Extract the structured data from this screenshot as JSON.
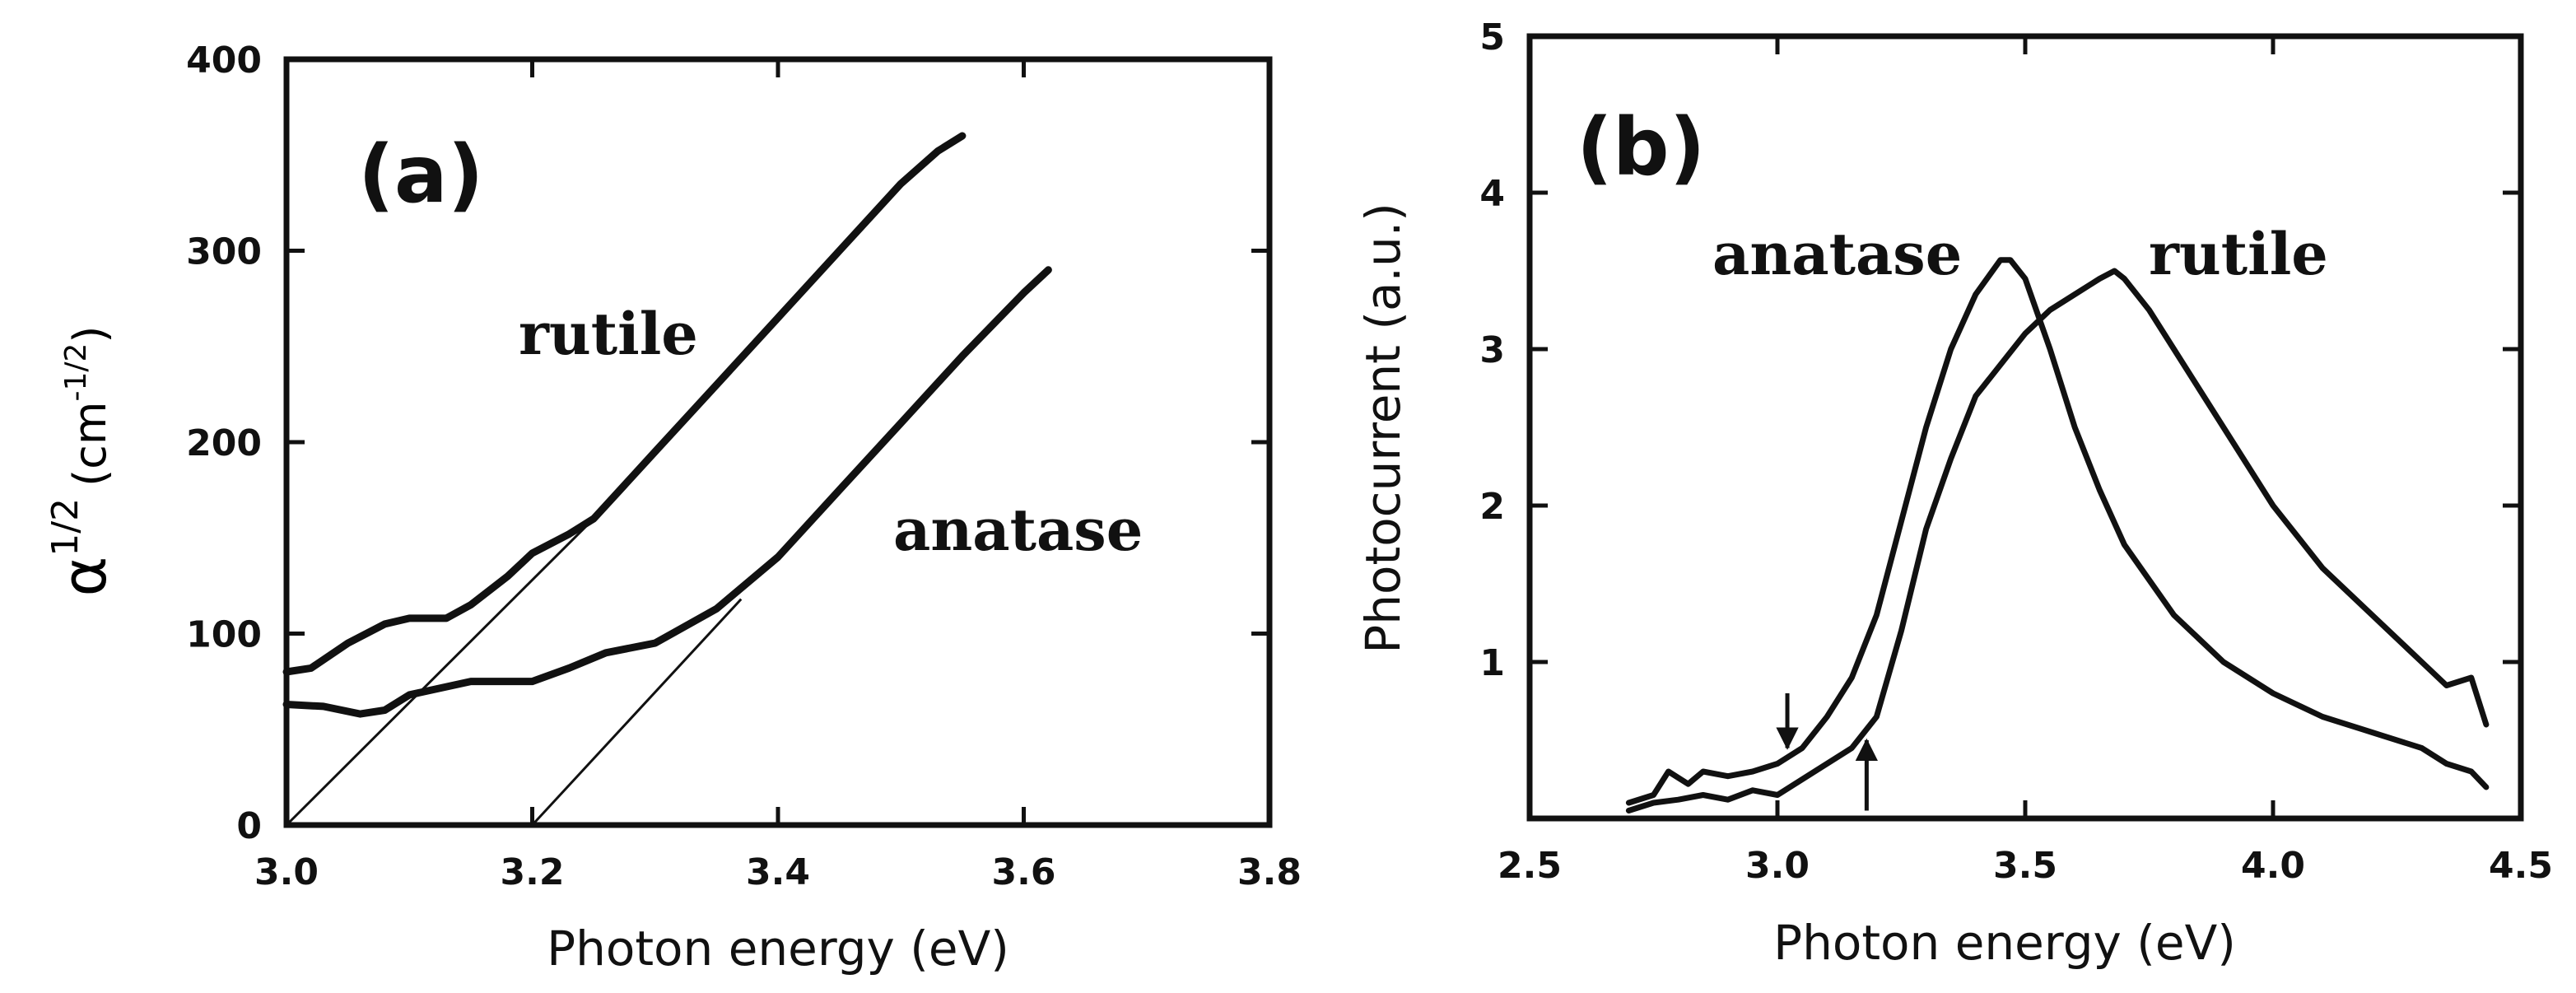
{
  "chart_data": [
    {
      "type": "line",
      "panel": "(a)",
      "xlabel": "Photon energy (eV)",
      "ylabel_main": "α",
      "ylabel_sup": "1/2",
      "ylabel_unit": "(cm",
      "ylabel_unit_sup": "-1/2",
      "ylabel_unit_end": ")",
      "xlim": [
        3.0,
        3.8
      ],
      "ylim": [
        0,
        400
      ],
      "xticks": [
        "3.0",
        "3.2",
        "3.4",
        "3.6",
        "3.8"
      ],
      "xtick_values": [
        3.0,
        3.2,
        3.4,
        3.6,
        3.8
      ],
      "yticks": [
        "0",
        "100",
        "200",
        "300",
        "400"
      ],
      "ytick_values": [
        0,
        100,
        200,
        300,
        400
      ],
      "series": [
        {
          "name": "rutile",
          "x": [
            3.0,
            3.02,
            3.05,
            3.08,
            3.1,
            3.13,
            3.15,
            3.18,
            3.2,
            3.23,
            3.25,
            3.3,
            3.35,
            3.4,
            3.45,
            3.5,
            3.53,
            3.55
          ],
          "y": [
            80,
            82,
            95,
            105,
            108,
            108,
            115,
            130,
            142,
            152,
            160,
            195,
            230,
            265,
            300,
            335,
            352,
            360
          ]
        },
        {
          "name": "anatase",
          "x": [
            3.0,
            3.03,
            3.06,
            3.08,
            3.1,
            3.15,
            3.2,
            3.23,
            3.26,
            3.3,
            3.35,
            3.4,
            3.45,
            3.5,
            3.55,
            3.6,
            3.62
          ],
          "y": [
            63,
            62,
            58,
            60,
            68,
            75,
            75,
            82,
            90,
            95,
            113,
            140,
            175,
            210,
            245,
            278,
            290
          ]
        }
      ],
      "fit_lines": [
        {
          "name": "rutile-fit",
          "x": [
            3.0,
            3.25
          ],
          "y": [
            0,
            160
          ]
        },
        {
          "name": "anatase-fit",
          "x": [
            3.2,
            3.37
          ],
          "y": [
            0,
            118
          ]
        }
      ],
      "annotations": [
        "rutile",
        "anatase"
      ]
    },
    {
      "type": "line",
      "panel": "(b)",
      "xlabel": "Photon energy (eV)",
      "ylabel": "Photocurrent (a.u.)",
      "xlim": [
        2.5,
        4.5
      ],
      "ylim": [
        0,
        5
      ],
      "xticks": [
        "2.5",
        "3.0",
        "3.5",
        "4.0",
        "4.5"
      ],
      "xtick_values": [
        2.5,
        3.0,
        3.5,
        4.0,
        4.5
      ],
      "yticks": [
        "1",
        "2",
        "3",
        "4",
        "5"
      ],
      "ytick_values": [
        1,
        2,
        3,
        4,
        5
      ],
      "series": [
        {
          "name": "anatase",
          "x": [
            2.7,
            2.75,
            2.78,
            2.82,
            2.85,
            2.9,
            2.95,
            3.0,
            3.05,
            3.1,
            3.15,
            3.2,
            3.25,
            3.3,
            3.35,
            3.4,
            3.45,
            3.47,
            3.5,
            3.55,
            3.6,
            3.65,
            3.7,
            3.8,
            3.9,
            4.0,
            4.1,
            4.2,
            4.3,
            4.35,
            4.4,
            4.43
          ],
          "y": [
            0.1,
            0.15,
            0.3,
            0.22,
            0.3,
            0.27,
            0.3,
            0.35,
            0.45,
            0.65,
            0.9,
            1.3,
            1.9,
            2.5,
            3.0,
            3.35,
            3.57,
            3.57,
            3.45,
            3.0,
            2.5,
            2.1,
            1.75,
            1.3,
            1.0,
            0.8,
            0.65,
            0.55,
            0.45,
            0.35,
            0.3,
            0.2
          ]
        },
        {
          "name": "rutile",
          "x": [
            2.7,
            2.75,
            2.8,
            2.85,
            2.9,
            2.95,
            3.0,
            3.05,
            3.1,
            3.15,
            3.2,
            3.25,
            3.3,
            3.35,
            3.4,
            3.45,
            3.5,
            3.55,
            3.6,
            3.65,
            3.68,
            3.7,
            3.75,
            3.8,
            3.9,
            4.0,
            4.1,
            4.2,
            4.3,
            4.35,
            4.4,
            4.43
          ],
          "y": [
            0.05,
            0.1,
            0.12,
            0.15,
            0.12,
            0.18,
            0.15,
            0.25,
            0.35,
            0.45,
            0.65,
            1.2,
            1.85,
            2.3,
            2.7,
            2.9,
            3.1,
            3.25,
            3.35,
            3.45,
            3.5,
            3.45,
            3.25,
            3.0,
            2.5,
            2.0,
            1.6,
            1.3,
            1.0,
            0.85,
            0.9,
            0.6
          ]
        }
      ],
      "arrows": [
        {
          "name": "anatase-onset",
          "x": 3.02,
          "y_from": 0.8,
          "y_to": 0.45,
          "direction": "down"
        },
        {
          "name": "rutile-onset",
          "x": 3.18,
          "y_from": 0.05,
          "y_to": 0.5,
          "direction": "up"
        }
      ],
      "annotations": [
        "anatase",
        "rutile"
      ]
    }
  ]
}
